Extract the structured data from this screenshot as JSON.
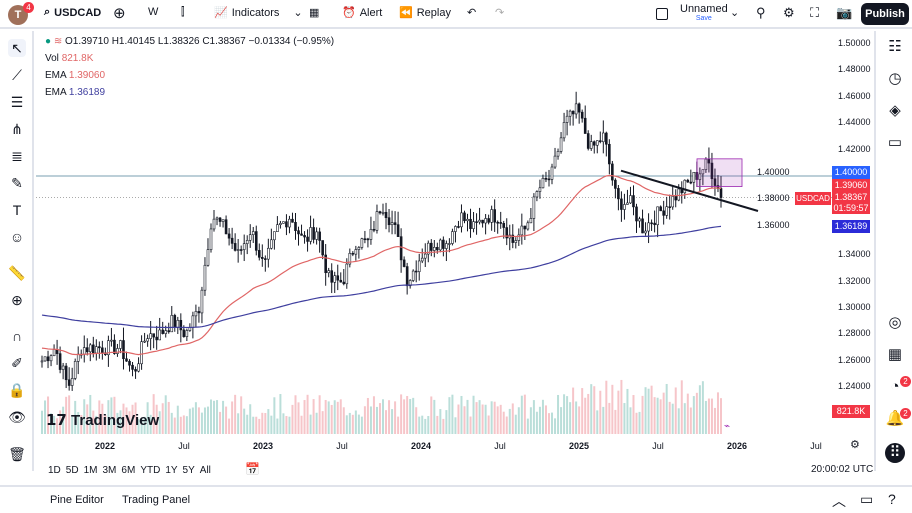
{
  "toolbar": {
    "avatar_letter": "T",
    "avatar_badge": "4",
    "symbol": "USDCAD",
    "interval": "W",
    "indicators": "Indicators",
    "alert": "Alert",
    "replay": "Replay",
    "layout_name": "Unnamed",
    "layout_status": "Save",
    "publish": "Publish"
  },
  "legend": {
    "ohlc": "O1.39710 H1.40145 L1.38326 C1.38367 −0.01334 (−0.95%)",
    "vol_label": "Vol",
    "vol_value": "821.8K",
    "ema1_label": "EMA",
    "ema1_value": "1.39060",
    "ema2_label": "EMA",
    "ema2_value": "1.36189"
  },
  "price_axis": [
    "1.50000",
    "1.48000",
    "1.46000",
    "1.44000",
    "1.42000",
    "1.40000",
    "1.38000",
    "1.36000",
    "1.34000",
    "1.32000",
    "1.30000",
    "1.28000",
    "1.26000",
    "1.24000"
  ],
  "price_badges": {
    "level": "1.40000",
    "ema1": "1.39060",
    "last": "1.38367",
    "countdown": "01:59:57",
    "symbol": "USDCAD",
    "ema2": "1.36189",
    "volume": "821.8K"
  },
  "time_axis": [
    "2022",
    "Jul",
    "2023",
    "Jul",
    "2024",
    "Jul",
    "2025",
    "Jul",
    "2026",
    "Jul"
  ],
  "ranges": [
    "1D",
    "5D",
    "1M",
    "3M",
    "6M",
    "YTD",
    "1Y",
    "5Y",
    "All"
  ],
  "clock": "20:00:02 UTC",
  "footer": {
    "pine": "Pine Editor",
    "trading": "Trading Panel"
  },
  "right_badges": {
    "alerts": "2",
    "notifications": "2"
  },
  "watermark": "TradingView",
  "colors": {
    "up": "#089981",
    "down": "#131722",
    "ema_fast": "#e06666",
    "ema_slow": "#3f3f9f",
    "last": "#f23645",
    "level": "#2962ff"
  },
  "chart_data": {
    "type": "candlestick",
    "interval": "weekly",
    "monthly_closes": {
      "start": "2021-08",
      "values": [
        1.26,
        1.27,
        1.24,
        1.27,
        1.27,
        1.27,
        1.27,
        1.25,
        1.28,
        1.28,
        1.29,
        1.28,
        1.3,
        1.37,
        1.36,
        1.34,
        1.36,
        1.33,
        1.36,
        1.37,
        1.35,
        1.36,
        1.32,
        1.32,
        1.35,
        1.35,
        1.38,
        1.36,
        1.32,
        1.34,
        1.35,
        1.35,
        1.37,
        1.36,
        1.37,
        1.37,
        1.35,
        1.36,
        1.39,
        1.4,
        1.44,
        1.45,
        1.42,
        1.43,
        1.38,
        1.38,
        1.36,
        1.37,
        1.38,
        1.39,
        1.4,
        1.41,
        1.38367
      ]
    },
    "ylim": [
      1.22,
      1.51
    ],
    "horizontal_level": 1.4,
    "dotted_level": 1.38367
  }
}
